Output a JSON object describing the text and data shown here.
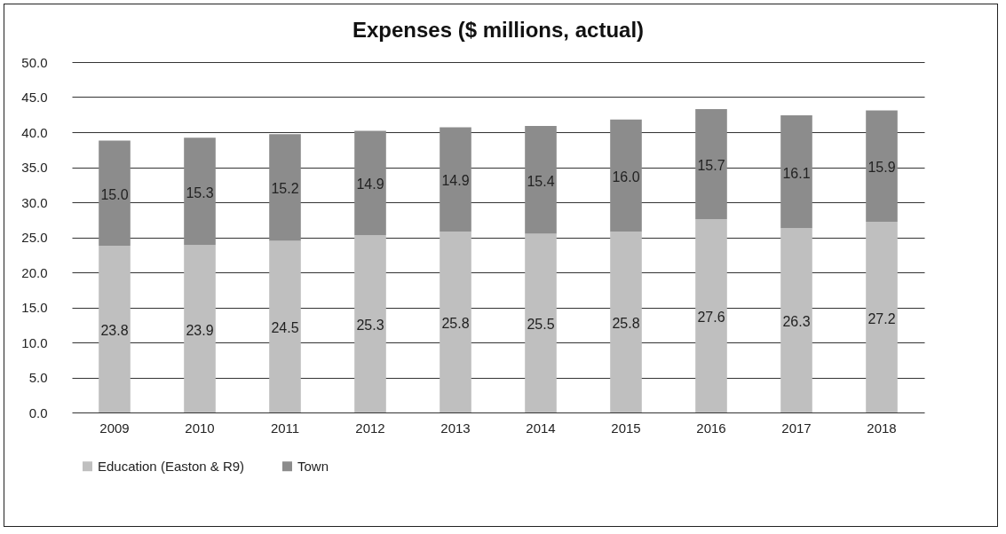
{
  "chart_data": {
    "type": "bar",
    "title": "Expenses ($ millions, actual)",
    "stacked": true,
    "grid": "y",
    "legend": "bottom",
    "categories": [
      "2009",
      "2010",
      "2011",
      "2012",
      "2013",
      "2014",
      "2015",
      "2016",
      "2017",
      "2018"
    ],
    "ylim": [
      0,
      50
    ],
    "yticks": [
      {
        "value": 0,
        "label": "0.0"
      },
      {
        "value": 5,
        "label": "5.0"
      },
      {
        "value": 10,
        "label": "10.0"
      },
      {
        "value": 15,
        "label": "15.0"
      },
      {
        "value": 20,
        "label": "20.0"
      },
      {
        "value": 25,
        "label": "25.0"
      },
      {
        "value": 30,
        "label": "30.0"
      },
      {
        "value": 35,
        "label": "35.0"
      },
      {
        "value": 40,
        "label": "40.0"
      },
      {
        "value": 45,
        "label": "45.0"
      },
      {
        "value": 50,
        "label": "50.0"
      }
    ],
    "series": [
      {
        "name": "Education (Easton & R9)",
        "color": "#bfbfbf",
        "values": [
          23.8,
          23.9,
          24.5,
          25.3,
          25.8,
          25.5,
          25.8,
          27.6,
          26.3,
          27.2
        ],
        "value_labels": [
          "23.8",
          "23.9",
          "24.5",
          "25.3",
          "25.8",
          "25.5",
          "25.8",
          "27.6",
          "26.3",
          "27.2"
        ]
      },
      {
        "name": "Town",
        "color": "#8c8c8c",
        "values": [
          15.0,
          15.3,
          15.2,
          14.9,
          14.9,
          15.4,
          16.0,
          15.7,
          16.1,
          15.9
        ],
        "value_labels": [
          "15.0",
          "15.3",
          "15.2",
          "14.9",
          "14.9",
          "15.4",
          "16.0",
          "15.7",
          "16.1",
          "15.9"
        ]
      }
    ]
  }
}
